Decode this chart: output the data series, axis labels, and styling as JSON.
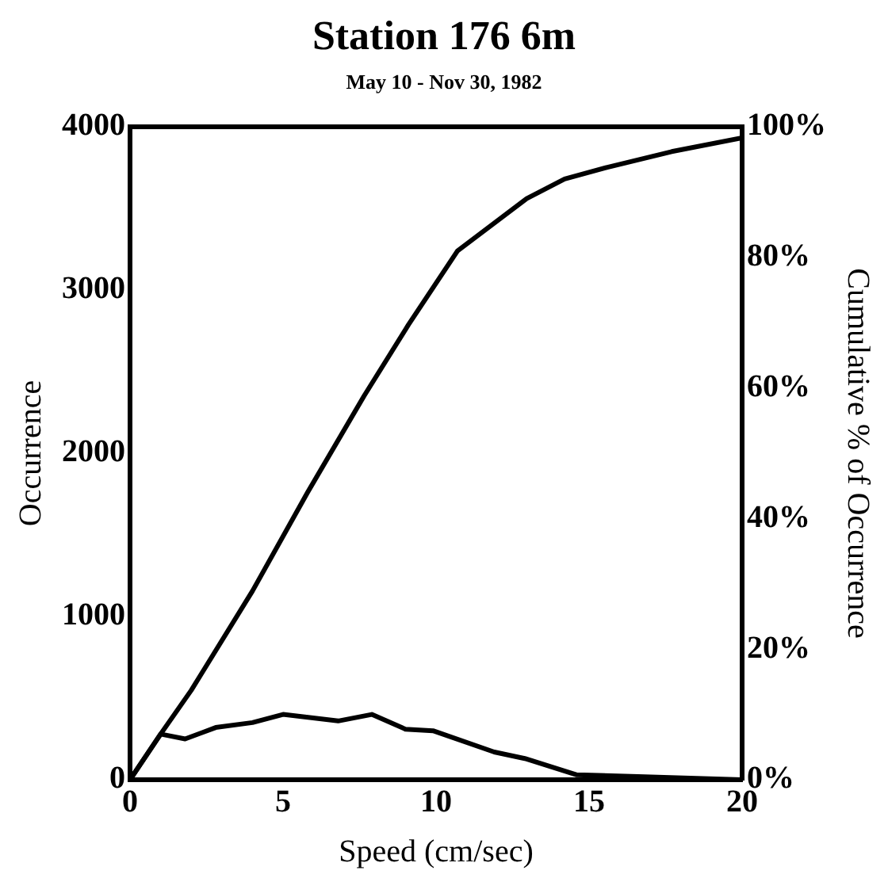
{
  "chart_data": {
    "type": "line",
    "title": "Station 176 6m",
    "subtitle": "May 10 - Nov 30, 1982",
    "xlabel": "Speed (cm/sec)",
    "ylabel": "Occurrence",
    "y2label": "Cumulative % of Occurrence",
    "xlim": [
      0,
      20
    ],
    "xticks": [
      0,
      5,
      10,
      15,
      20
    ],
    "ylim": [
      0,
      4000
    ],
    "yticks": [
      0,
      1000,
      2000,
      3000,
      4000
    ],
    "y2lim": [
      0,
      100
    ],
    "y2ticks": [
      {
        "value": 0,
        "label": "0%"
      },
      {
        "value": 20,
        "label": "20%"
      },
      {
        "value": 40,
        "label": "40%"
      },
      {
        "value": 60,
        "label": "60%"
      },
      {
        "value": 80,
        "label": "80%"
      },
      {
        "value": 100,
        "label": "100%"
      }
    ],
    "grid": false,
    "legend": false,
    "marker": "none",
    "line_style": "solid",
    "series": [
      {
        "color": "#000000",
        "x": [
          0,
          1,
          1.8,
          2.8,
          4,
          5,
          6.8,
          7.9,
          9,
          9.9,
          11.9,
          12.9,
          14.6,
          16.6,
          20
        ],
        "values": [
          0,
          280,
          250,
          320,
          350,
          400,
          360,
          400,
          310,
          300,
          170,
          130,
          30,
          20,
          0
        ]
      },
      {
        "color": "#000000",
        "axis": "y2",
        "x": [
          0,
          1,
          2,
          4,
          5.8,
          7.65,
          9.1,
          10.7,
          12.96,
          14.2,
          15.6,
          17.7,
          20
        ],
        "values": [
          0,
          7,
          13.7,
          28.9,
          44,
          58.8,
          69.7,
          81,
          89,
          92,
          93.8,
          96.2,
          98.3
        ]
      }
    ]
  }
}
